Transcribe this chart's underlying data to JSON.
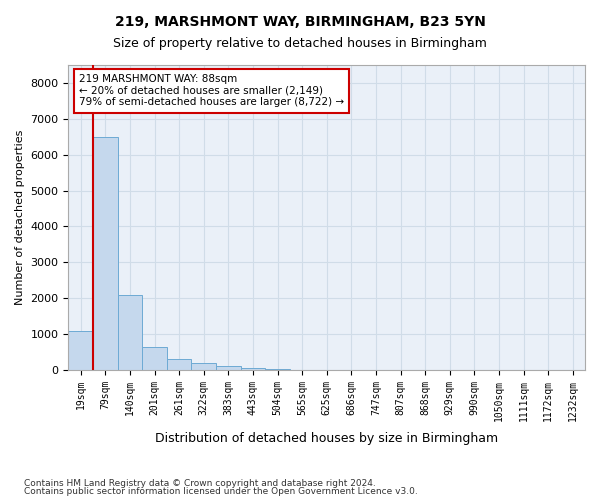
{
  "title": "219, MARSHMONT WAY, BIRMINGHAM, B23 5YN",
  "subtitle": "Size of property relative to detached houses in Birmingham",
  "xlabel": "Distribution of detached houses by size in Birmingham",
  "ylabel": "Number of detached properties",
  "footnote1": "Contains HM Land Registry data © Crown copyright and database right 2024.",
  "footnote2": "Contains public sector information licensed under the Open Government Licence v3.0.",
  "annotation_title": "219 MARSHMONT WAY: 88sqm",
  "annotation_line1": "← 20% of detached houses are smaller (2,149)",
  "annotation_line2": "79% of semi-detached houses are larger (8,722) →",
  "bin_labels": [
    "19sqm",
    "79sqm",
    "140sqm",
    "201sqm",
    "261sqm",
    "322sqm",
    "383sqm",
    "443sqm",
    "504sqm",
    "565sqm",
    "625sqm",
    "686sqm",
    "747sqm",
    "807sqm",
    "868sqm",
    "929sqm",
    "990sqm",
    "1050sqm",
    "1111sqm",
    "1172sqm",
    "1232sqm"
  ],
  "bar_values": [
    1100,
    6500,
    2100,
    650,
    300,
    190,
    100,
    50,
    30,
    15,
    10,
    5,
    3,
    2,
    1,
    1,
    0,
    0,
    0,
    0,
    0
  ],
  "bar_color": "#c5d8ed",
  "bar_edge_color": "#6daad4",
  "property_line_color": "#cc0000",
  "ylim": [
    0,
    8500
  ],
  "yticks": [
    0,
    1000,
    2000,
    3000,
    4000,
    5000,
    6000,
    7000,
    8000
  ],
  "annotation_box_color": "#ffffff",
  "annotation_box_edge": "#cc0000",
  "grid_color": "#d0dce8",
  "background_color": "#eaf0f8"
}
